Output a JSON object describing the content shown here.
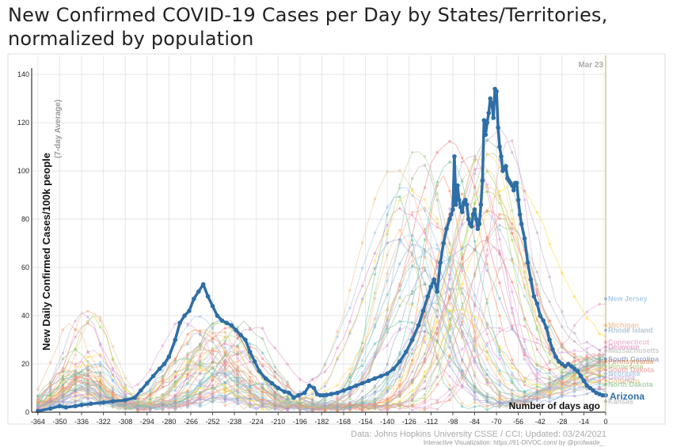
{
  "title_line1": "New Confirmed COVID-19 Cases per Day by States/Territories,",
  "title_line2": "normalized by population",
  "date_marker": "Mar 23",
  "source": "Data: Johns Hopkins University CSSE / CCI; Updated: 03/24/2021",
  "credit": "Interactive Visualization: https://91-DIVOC.com/ by @profwade_",
  "colors": {
    "highlight": "#2f6ea6",
    "grid": "#e6e6e6",
    "background_pale": "#fffbe6"
  },
  "chart_data": {
    "type": "line",
    "title": "New Confirmed COVID-19 Cases per Day by States/Territories, normalized by population",
    "ylabel": "New Daily Confirmed Cases/100k people",
    "ylabel_sub": "(7-day Average)",
    "xlabel": "Number of days ago",
    "xlim": [
      -368,
      0
    ],
    "ylim": [
      0,
      142
    ],
    "x_ticks": [
      -364,
      -350,
      -336,
      -322,
      -308,
      -294,
      -280,
      -266,
      -252,
      -238,
      -224,
      -210,
      -196,
      -182,
      -168,
      -154,
      -140,
      -126,
      -112,
      -98,
      -84,
      -70,
      -56,
      -42,
      -28,
      -14,
      0
    ],
    "y_ticks": [
      0,
      20,
      40,
      60,
      80,
      100,
      120,
      140
    ],
    "grid": true,
    "highlight": {
      "name": "Arizona",
      "x": [
        -364,
        -356,
        -350,
        -346,
        -340,
        -336,
        -330,
        -322,
        -316,
        -308,
        -302,
        -298,
        -294,
        -290,
        -286,
        -283,
        -280,
        -276,
        -273,
        -270,
        -267,
        -264,
        -261,
        -258,
        -255,
        -252,
        -249,
        -246,
        -243,
        -240,
        -237,
        -234,
        -231,
        -228,
        -225,
        -222,
        -218,
        -214,
        -210,
        -206,
        -203,
        -200,
        -197,
        -193,
        -190,
        -187,
        -185,
        -183,
        -181,
        -179,
        -176,
        -172,
        -168,
        -164,
        -160,
        -156,
        -152,
        -148,
        -144,
        -140,
        -136,
        -132,
        -128,
        -124,
        -120,
        -117,
        -114,
        -112,
        -110,
        -108,
        -106,
        -104,
        -102,
        -100,
        -99,
        -98,
        -97,
        -96,
        -95,
        -94,
        -93,
        -92,
        -91,
        -90,
        -89,
        -88,
        -87,
        -86,
        -85,
        -84,
        -83,
        -82,
        -81,
        -80,
        -79,
        -78,
        -77,
        -76,
        -75,
        -74,
        -73,
        -72,
        -71,
        -70,
        -69,
        -68,
        -67,
        -66,
        -65,
        -64,
        -63,
        -62,
        -61,
        -60,
        -59,
        -58,
        -57,
        -56,
        -55,
        -54,
        -52,
        -50,
        -48,
        -46,
        -44,
        -42,
        -40,
        -38,
        -36,
        -34,
        -32,
        -30,
        -28,
        -26,
        -24,
        -22,
        -20,
        -18,
        -16,
        -14,
        -12,
        -10,
        -8,
        -6,
        -4,
        -2,
        0
      ],
      "y": [
        0.5,
        1.5,
        2.5,
        2.0,
        2.5,
        3.0,
        3.5,
        4.0,
        4.5,
        5.0,
        6.0,
        9.0,
        12.0,
        15.0,
        18.0,
        20.0,
        23.0,
        30.0,
        37.0,
        40.0,
        42.0,
        47.0,
        50.0,
        53.0,
        48.0,
        44.0,
        40.0,
        38.0,
        37.0,
        36.0,
        34.0,
        32.0,
        30.0,
        25.0,
        21.0,
        17.0,
        14.0,
        12.0,
        10.0,
        8.5,
        8.0,
        6.0,
        7.0,
        8.0,
        11.0,
        10.0,
        7.5,
        7.0,
        7.0,
        7.2,
        7.5,
        8.0,
        9.0,
        10.0,
        11.0,
        12.0,
        13.0,
        14.0,
        15.0,
        16.0,
        18.0,
        21.0,
        25.0,
        30.0,
        36.0,
        42.0,
        48.0,
        52.0,
        55.0,
        50.0,
        62.0,
        70.0,
        76.0,
        80.0,
        82.0,
        84.0,
        106.0,
        86.0,
        94.0,
        88.0,
        85.0,
        83.0,
        87.0,
        88.0,
        86.0,
        80.0,
        78.0,
        77.0,
        82.0,
        84.0,
        80.0,
        76.0,
        78.0,
        86.0,
        96.0,
        121.0,
        115.0,
        120.0,
        124.0,
        130.0,
        128.0,
        122.0,
        134.0,
        133.0,
        118.0,
        110.0,
        106.0,
        100.0,
        101.0,
        102.0,
        97.0,
        96.0,
        95.0,
        94.0,
        92.0,
        95.0,
        95.0,
        88.0,
        82.0,
        78.0,
        72.0,
        62.0,
        55.0,
        48.0,
        45.0,
        40.0,
        38.0,
        35.0,
        30.0,
        26.0,
        23.0,
        21.0,
        20.0,
        19.0,
        20.0,
        19.0,
        18.0,
        17.0,
        15.0,
        13.0,
        11.0,
        10.0,
        9.0,
        8.0,
        7.5,
        7.0,
        7.0
      ]
    },
    "background_series_count": 55,
    "state_labels": [
      {
        "name": "New Jersey",
        "y": 47,
        "color": "#6aa6d6"
      },
      {
        "name": "Michigan",
        "y": 36,
        "color": "#f0a060"
      },
      {
        "name": "Rhode Island",
        "y": 34,
        "color": "#7a9ab8"
      },
      {
        "name": "Connecticut",
        "y": 29,
        "color": "#e087b3"
      },
      {
        "name": "Delaware",
        "y": 27,
        "color": "#d36fb0"
      },
      {
        "name": "Massachusetts",
        "y": 25.5,
        "color": "#a5a5a5"
      },
      {
        "name": "South Carolina",
        "y": 22,
        "color": "#5a6fb0"
      },
      {
        "name": "Pennsylvania",
        "y": 21,
        "color": "#c76b2a"
      },
      {
        "name": "Minnesota",
        "y": 19,
        "color": "#8fbf5a"
      },
      {
        "name": "South Dakota",
        "y": 17.5,
        "color": "#e87d7d"
      },
      {
        "name": "Nebraska",
        "y": 16,
        "color": "#7fb0d8"
      },
      {
        "name": "Georgia",
        "y": 14.5,
        "color": "#b08bd0"
      },
      {
        "name": "Colorado",
        "y": 13,
        "color": "#d9a760"
      },
      {
        "name": "North Dakota",
        "y": 11.5,
        "color": "#6ab06a"
      },
      {
        "name": "Kansas",
        "y": 4.5,
        "color": "#9a9a9a"
      }
    ]
  }
}
